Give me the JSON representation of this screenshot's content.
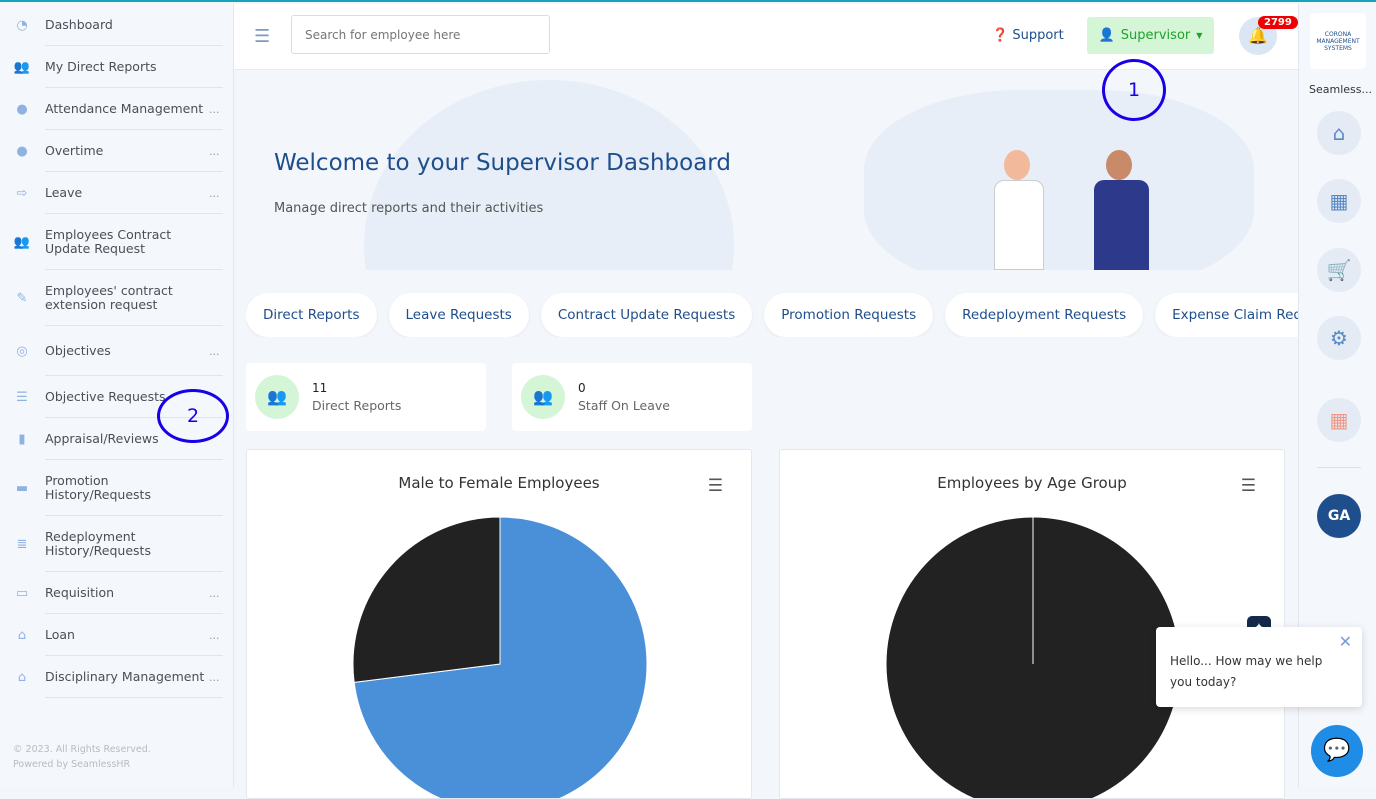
{
  "sidebar": {
    "items": [
      {
        "label": "Dashboard",
        "icon": "dashboard-icon",
        "more": ""
      },
      {
        "label": "My Direct Reports",
        "icon": "users-icon",
        "more": ""
      },
      {
        "label": "Attendance Management",
        "icon": "clock-icon",
        "more": "..."
      },
      {
        "label": "Overtime",
        "icon": "clock-icon",
        "more": "..."
      },
      {
        "label": "Leave",
        "icon": "sign-out-icon",
        "more": "..."
      },
      {
        "label": "Employees Contract Update Request",
        "icon": "users-icon",
        "more": ""
      },
      {
        "label": "Employees' contract extension request",
        "icon": "edit-icon",
        "more": ""
      },
      {
        "label": "Objectives",
        "icon": "target-icon",
        "more": "..."
      },
      {
        "label": "Objective Requests",
        "icon": "list-check-icon",
        "more": ""
      },
      {
        "label": "Appraisal/Reviews",
        "icon": "book-icon",
        "more": ""
      },
      {
        "label": "Promotion History/Requests",
        "icon": "briefcase-icon",
        "more": ""
      },
      {
        "label": "Redeployment History/Requests",
        "icon": "server-icon",
        "more": ""
      },
      {
        "label": "Requisition",
        "icon": "credit-card-icon",
        "more": "..."
      },
      {
        "label": "Loan",
        "icon": "bank-icon",
        "more": "..."
      },
      {
        "label": "Disciplinary Management",
        "icon": "bank-icon",
        "more": "..."
      }
    ],
    "footer": [
      "© 2023. All Rights Reserved.",
      "Powered by SeamlessHR"
    ]
  },
  "topbar": {
    "search_placeholder": "Search for employee here",
    "support": "Support",
    "role": "Supervisor",
    "notifications": "2799"
  },
  "rightbar": {
    "org_name": "Seamless...",
    "logo_text": "CORONA MANAGEMENT SYSTEMS",
    "avatar": "GA"
  },
  "hero": {
    "title": "Welcome to your Supervisor Dashboard",
    "subtitle": "Manage direct reports and their activities"
  },
  "tabs": [
    "Direct Reports",
    "Leave Requests",
    "Contract Update Requests",
    "Promotion Requests",
    "Redeployment Requests",
    "Expense Claim Requisition"
  ],
  "stats": [
    {
      "value": "11",
      "label": "Direct Reports"
    },
    {
      "value": "0",
      "label": "Staff On Leave"
    }
  ],
  "chart_data": [
    {
      "type": "pie",
      "title": "Male to Female Employees",
      "values": [
        73,
        27
      ],
      "colors": [
        "#4a90d9",
        "#222222"
      ]
    },
    {
      "type": "pie",
      "title": "Employees by Age Group",
      "values": [
        100
      ],
      "colors": [
        "#222222"
      ]
    }
  ],
  "chat": {
    "message": "Hello... How may we help you today?"
  },
  "annotations": [
    "1",
    "2"
  ]
}
